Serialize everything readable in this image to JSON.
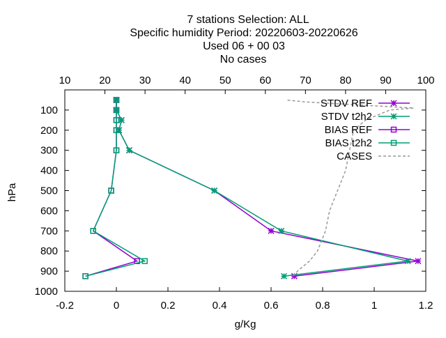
{
  "title_lines": [
    "7 stations Selection: ALL",
    "Specific humidity  Period: 20220603-20220626",
    "Used  06  + 00 03",
    "No cases"
  ],
  "colors": {
    "ref": "#9400d3",
    "t2h2": "#009e73",
    "cases": "#999999"
  },
  "chart_data": {
    "type": "line",
    "xlabel": "g/Kg",
    "ylabel": "hPa",
    "xlim": [
      -0.2,
      1.2
    ],
    "x_ticks": [
      "-0.2",
      "0",
      "0.2",
      "0.4",
      "0.6",
      "0.8",
      "1",
      "1.2"
    ],
    "x2lim": [
      10,
      100
    ],
    "x2_ticks": [
      "10",
      "20",
      "30",
      "40",
      "50",
      "60",
      "70",
      "80",
      "90",
      "100"
    ],
    "ylim": [
      1000,
      0
    ],
    "y_ticks": [
      "100",
      "200",
      "300",
      "400",
      "500",
      "600",
      "700",
      "800",
      "900",
      "1000"
    ],
    "y_reversed": true,
    "grid": false,
    "legend_position": "top-right",
    "series": [
      {
        "name": "STDV REF",
        "marker": "star",
        "color_key": "ref",
        "points": [
          [
            0.0,
            50
          ],
          [
            0.0,
            100
          ],
          [
            0.02,
            150
          ],
          [
            0.01,
            200
          ],
          [
            0.05,
            300
          ],
          [
            0.38,
            500
          ],
          [
            0.6,
            700
          ],
          [
            1.17,
            850
          ],
          [
            0.69,
            925
          ]
        ]
      },
      {
        "name": "STDV t2h2",
        "marker": "star",
        "color_key": "t2h2",
        "points": [
          [
            0.0,
            50
          ],
          [
            0.0,
            100
          ],
          [
            0.02,
            150
          ],
          [
            0.01,
            200
          ],
          [
            0.05,
            300
          ],
          [
            0.38,
            500
          ],
          [
            0.64,
            700
          ],
          [
            1.13,
            850
          ],
          [
            0.65,
            925
          ]
        ]
      },
      {
        "name": "BIAS REF",
        "marker": "square",
        "color_key": "ref",
        "points": [
          [
            0.0,
            50
          ],
          [
            0.0,
            100
          ],
          [
            0.0,
            150
          ],
          [
            0.0,
            200
          ],
          [
            0.0,
            300
          ],
          [
            -0.02,
            500
          ],
          [
            -0.09,
            700
          ],
          [
            0.08,
            850
          ],
          [
            -0.12,
            925
          ]
        ]
      },
      {
        "name": "BIAS t2h2",
        "marker": "square",
        "color_key": "t2h2",
        "points": [
          [
            0.0,
            50
          ],
          [
            0.0,
            100
          ],
          [
            0.0,
            150
          ],
          [
            0.0,
            200
          ],
          [
            0.0,
            300
          ],
          [
            -0.02,
            500
          ],
          [
            -0.09,
            700
          ],
          [
            0.11,
            850
          ],
          [
            -0.12,
            925
          ]
        ]
      },
      {
        "name": "CASES",
        "axis": "x2",
        "dashed": true,
        "color_key": "cases",
        "points": [
          [
            67,
            925
          ],
          [
            68,
            900
          ],
          [
            71,
            850
          ],
          [
            73,
            800
          ],
          [
            75,
            700
          ],
          [
            76,
            600
          ],
          [
            78,
            500
          ],
          [
            80,
            400
          ],
          [
            81,
            300
          ],
          [
            82,
            200
          ],
          [
            85,
            150
          ],
          [
            91,
            100
          ],
          [
            97,
            90
          ],
          [
            88,
            80
          ],
          [
            79,
            70
          ],
          [
            70,
            60
          ],
          [
            65,
            50
          ]
        ]
      }
    ]
  }
}
